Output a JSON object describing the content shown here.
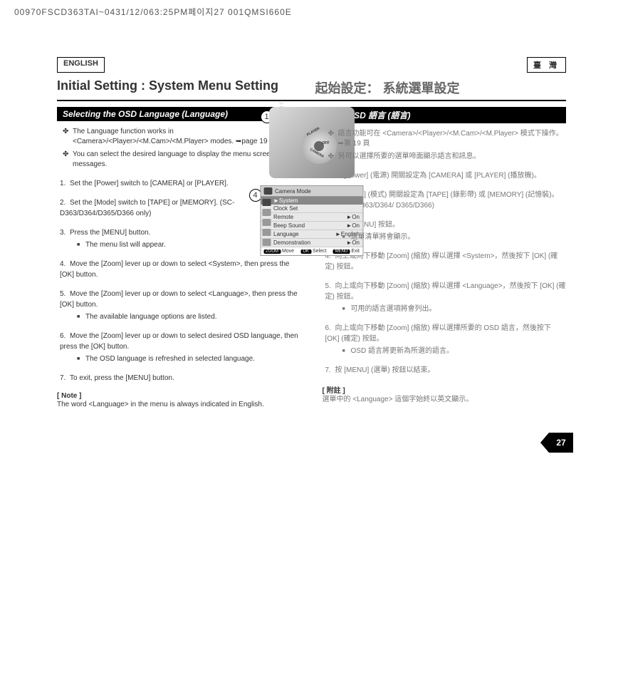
{
  "header_code": "00970FSCD363TAI~0431/12/063:25PM페이지27 001QMSI660E",
  "lang_left": "ENGLISH",
  "lang_right": "臺 灣",
  "title_left": "Initial Setting : System Menu Setting",
  "title_right": "起始設定： 系統選單設定",
  "section_left": "Selecting the OSD Language (Language)",
  "section_right": "選擇 OSD 語言 (語言)",
  "intro_left": [
    "The Language function works in <Camera>/<Player>/<M.Cam>/<M.Player> modes. ➥page 19",
    "You can select the desired language to display the menu screen and the messages."
  ],
  "intro_right": [
    "語言功能可在 <Camera>/<Player>/<M.Cam>/<M.Player> 模式下操作。➥第 19 頁",
    "另可以選擇所要的選單啼面顯示語言和訊息。"
  ],
  "steps_left": [
    {
      "n": "1.",
      "text": "Set the [Power] switch to [CAMERA] or [PLAYER]."
    },
    {
      "n": "2.",
      "text": "Set the [Mode] switch to [TAPE] or [MEMORY]. (SC-D363/D364/D365/D366 only)"
    },
    {
      "n": "3.",
      "text": "Press the [MENU] button.",
      "sub": [
        "The menu list will appear."
      ]
    },
    {
      "n": "4.",
      "text": "Move the [Zoom] lever up or down to select <System>, then press the [OK] button."
    },
    {
      "n": "5.",
      "text": "Move the [Zoom] lever up or down to select <Language>, then press the [OK] button.",
      "sub": [
        "The available language options are listed."
      ]
    },
    {
      "n": "6.",
      "text": "Move the [Zoom] lever up or down to select desired OSD language, then press the [OK] button.",
      "sub": [
        "The OSD language is refreshed in selected language."
      ]
    },
    {
      "n": "7.",
      "text": "To exit, press the [MENU] button."
    }
  ],
  "steps_right": [
    {
      "n": "1.",
      "text": "將 [Power] (電源) 開關設定為 [CAMERA] 或 [PLAYER] (播放機)。"
    },
    {
      "n": "2.",
      "text": "將 [Mode] (模式) 開關設定為 [TAPE] (錄影帶) 或 [MEMORY] (記憶裝)。 (僅限 SC-D363/D364/ D365/D366)"
    },
    {
      "n": "3.",
      "text": "按下 [MENU] 按鈕。",
      "sub": [
        "選單清單將會顯示。"
      ]
    },
    {
      "n": "4.",
      "text": "向上或向下移動 [Zoom] (縮放) 桿以選擇 <System>，然後按下 [OK] (確定) 按鈕。"
    },
    {
      "n": "5.",
      "text": "向上或向下移動 [Zoom] (縮放) 桿以選擇 <Language>，然後按下 [OK] (確定) 按鈕。",
      "sub": [
        "可用的語言選項將會列出。"
      ]
    },
    {
      "n": "6.",
      "text": "向上或向下移動 [Zoom] (縮放) 桿以選擇所要的 OSD 語言，然後按下 [OK] (確定) 按鈕。",
      "sub": [
        "OSD 語言將更新為所選的語言。"
      ]
    },
    {
      "n": "7.",
      "text": "按 [MENU] (選單) 按鈕以結束。"
    }
  ],
  "note_left_title": "[ Note ]",
  "note_left_text": "The word <Language> in the menu is always indicated in English.",
  "note_right_title": "[ 附註 ]",
  "note_right_text": "選單中的 <Language> 這個字始終以英文顯示。",
  "callout_1": "1",
  "callout_4": "4",
  "dial_player": "PLAYER",
  "dial_off": "OFF",
  "dial_camera": "CAMERA",
  "menu": {
    "title": "Camera Mode",
    "section": "►System",
    "rows": [
      {
        "label": "Clock Set",
        "val": ""
      },
      {
        "label": "Remote",
        "val": "►On"
      },
      {
        "label": "Beep Sound",
        "val": "►On"
      },
      {
        "label": "Language",
        "val": "►English"
      },
      {
        "label": "Demonstration",
        "val": "►On"
      }
    ],
    "footer_move_btn": "ZOOM",
    "footer_move": "Move",
    "footer_select_btn": "OK",
    "footer_select": "Select",
    "footer_exit_btn": "MENU",
    "footer_exit": "Exit"
  },
  "page_number": "27"
}
